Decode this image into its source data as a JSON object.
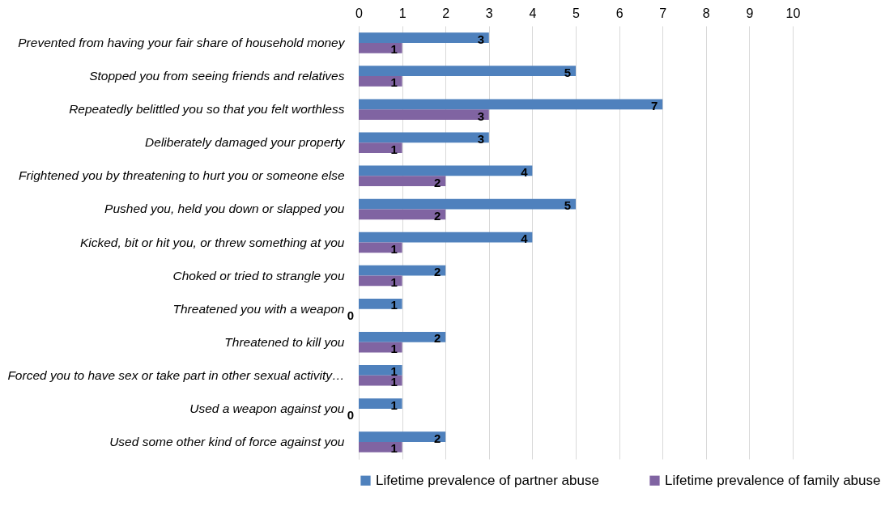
{
  "chart_data": {
    "type": "bar",
    "orientation": "horizontal",
    "categories": [
      "Prevented from having your fair share of household money",
      "Stopped you from seeing friends and relatives",
      "Repeatedly belittled you so that you felt worthless",
      "Deliberately damaged your property",
      "Frightened you by threatening to hurt you or someone else",
      "Pushed you, held you down or slapped you",
      "Kicked, bit or hit you, or threw something at you",
      "Choked or tried to strangle you",
      "Threatened you with a weapon",
      "Threatened to kill you",
      "Forced you to have sex or take part in other sexual activity…",
      "Used a weapon against you",
      "Used some other kind of force against you"
    ],
    "series": [
      {
        "name": "Lifetime prevalence of partner abuse",
        "color": "#4f81bd",
        "values": [
          3,
          5,
          7,
          3,
          4,
          5,
          4,
          2,
          1,
          2,
          1,
          1,
          2
        ]
      },
      {
        "name": "Lifetime prevalence of family abuse",
        "color": "#8064a2",
        "values": [
          1,
          1,
          3,
          1,
          2,
          2,
          1,
          1,
          0,
          1,
          1,
          0,
          1
        ]
      }
    ],
    "xlim": [
      0,
      10
    ],
    "xticks": [
      0,
      1,
      2,
      3,
      4,
      5,
      6,
      7,
      8,
      9,
      10
    ],
    "grid": "x",
    "legend": "bottom",
    "data_labels": true
  }
}
